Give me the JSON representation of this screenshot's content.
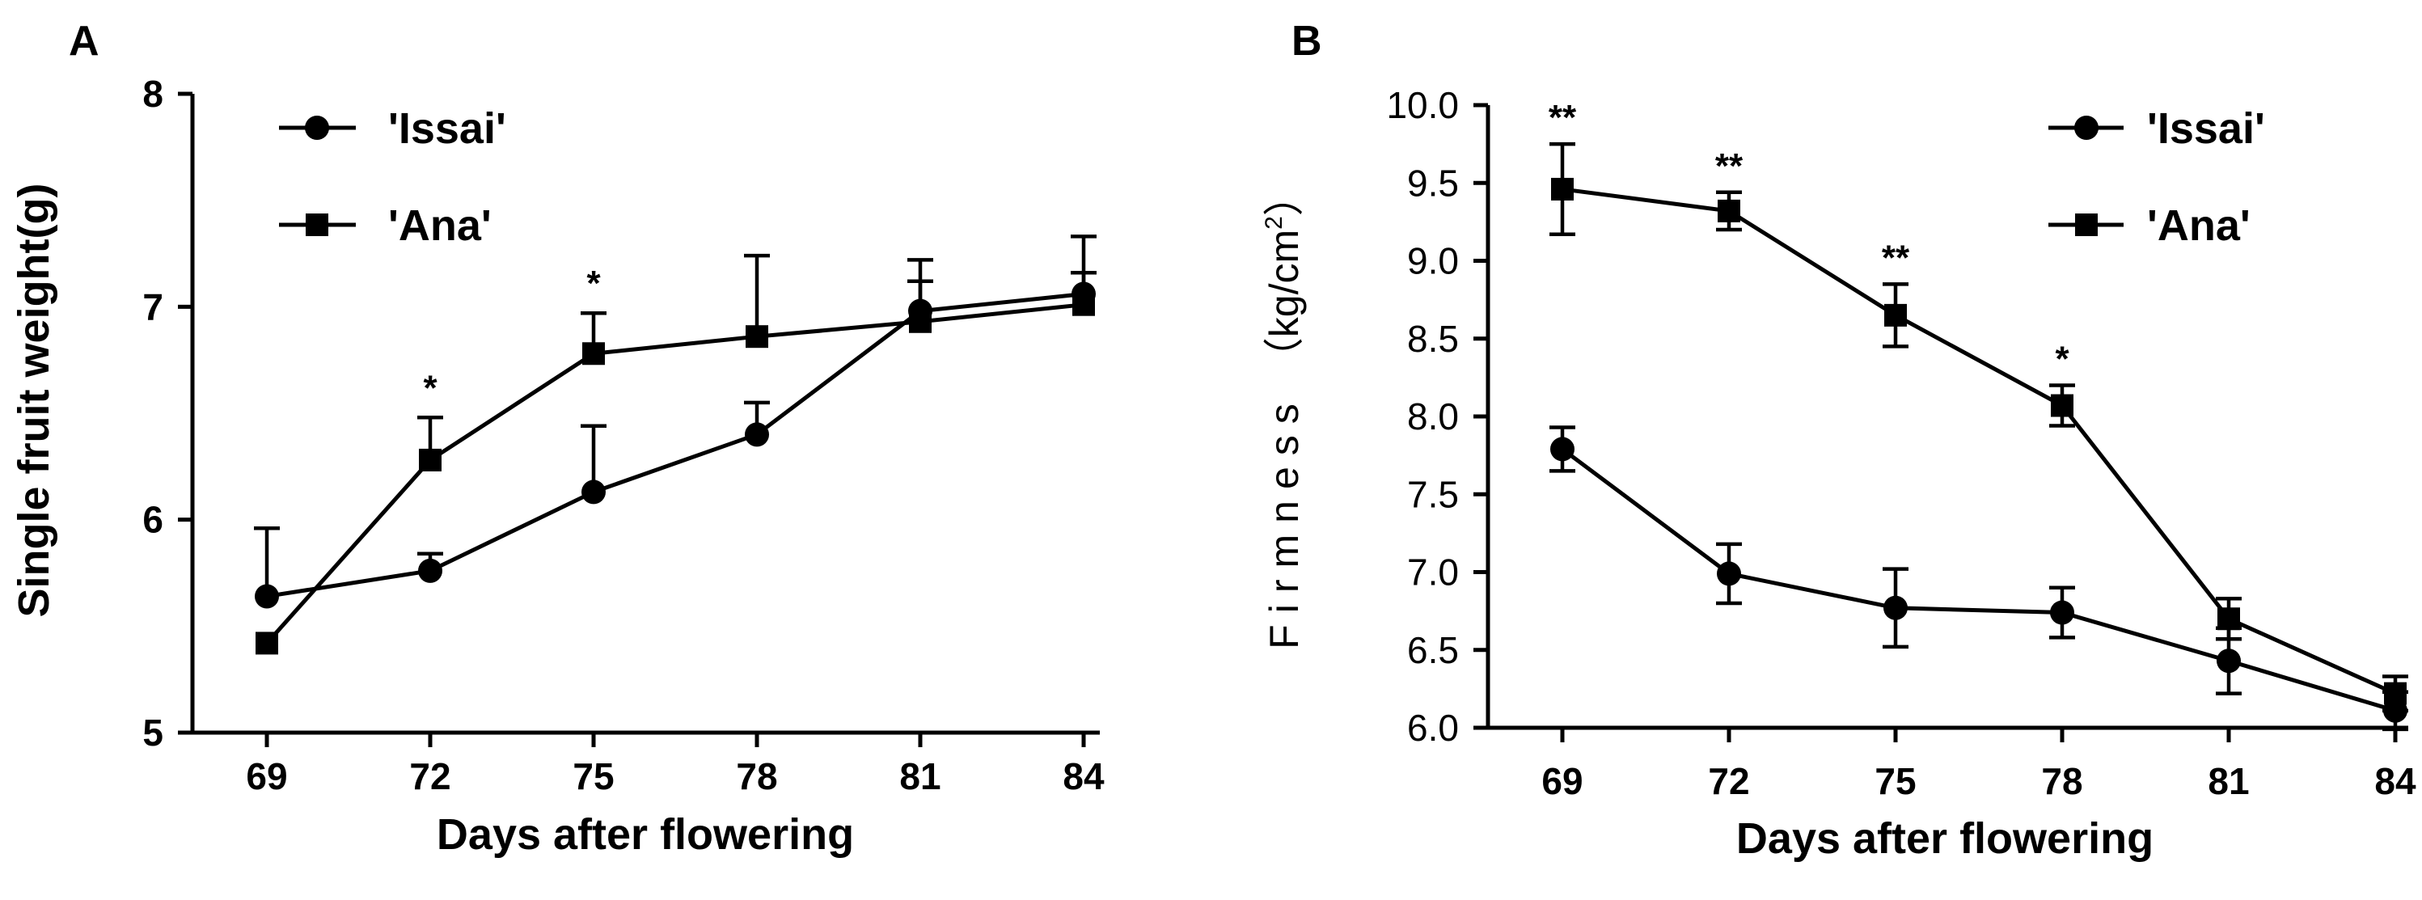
{
  "chart_data": [
    {
      "panel_label": "A",
      "type": "line",
      "x": [
        69,
        72,
        75,
        78,
        81,
        84
      ],
      "xticks": [
        "69",
        "72",
        "75",
        "78",
        "81",
        "84"
      ],
      "xlabel": "Days after flowering",
      "ylabel": "Single fruit weight(g)",
      "ylim": [
        5,
        8
      ],
      "yticks": [
        "5",
        "6",
        "7",
        "8"
      ],
      "legend_position": "top-left",
      "series": [
        {
          "name": "'Issai'",
          "marker": "circle",
          "values": [
            5.64,
            5.76,
            6.13,
            6.4,
            6.98,
            7.06
          ],
          "errors": [
            0.32,
            0.08,
            0.31,
            0.15,
            0.24,
            0.27
          ]
        },
        {
          "name": "'Ana'",
          "marker": "square",
          "values": [
            5.42,
            6.28,
            6.78,
            6.86,
            6.93,
            7.01
          ],
          "errors": [
            0.0,
            0.2,
            0.19,
            0.38,
            0.19,
            0.15
          ]
        }
      ],
      "annotations": [
        {
          "x": 72,
          "text": "*"
        },
        {
          "x": 75,
          "text": "*"
        }
      ]
    },
    {
      "panel_label": "B",
      "type": "line",
      "x": [
        69,
        72,
        75,
        78,
        81,
        84
      ],
      "xticks": [
        "69",
        "72",
        "75",
        "78",
        "81",
        "84"
      ],
      "xlabel": "Days after flowering",
      "ylabel_main": "Firmness",
      "ylabel_unit": "（kg/cm",
      "ylabel_sup": "2",
      "ylabel_close": "）",
      "ylim": [
        6.0,
        10.0
      ],
      "yticks": [
        "6.0",
        "6.5",
        "7.0",
        "7.5",
        "8.0",
        "8.5",
        "9.0",
        "9.5",
        "10.0"
      ],
      "legend_position": "top-right",
      "series": [
        {
          "name": "'Issai'",
          "marker": "circle",
          "values": [
            7.79,
            6.99,
            6.77,
            6.74,
            6.43,
            6.11
          ],
          "errors": [
            0.14,
            0.19,
            0.25,
            0.16,
            0.21,
            0.12
          ]
        },
        {
          "name": "'Ana'",
          "marker": "square",
          "values": [
            9.46,
            9.32,
            8.65,
            8.07,
            6.7,
            6.22
          ],
          "errors": [
            0.29,
            0.12,
            0.2,
            0.13,
            0.13,
            0.11
          ]
        }
      ],
      "annotations": [
        {
          "x": 69,
          "text": "**"
        },
        {
          "x": 72,
          "text": "**"
        },
        {
          "x": 75,
          "text": "**"
        },
        {
          "x": 78,
          "text": "*"
        }
      ]
    }
  ]
}
